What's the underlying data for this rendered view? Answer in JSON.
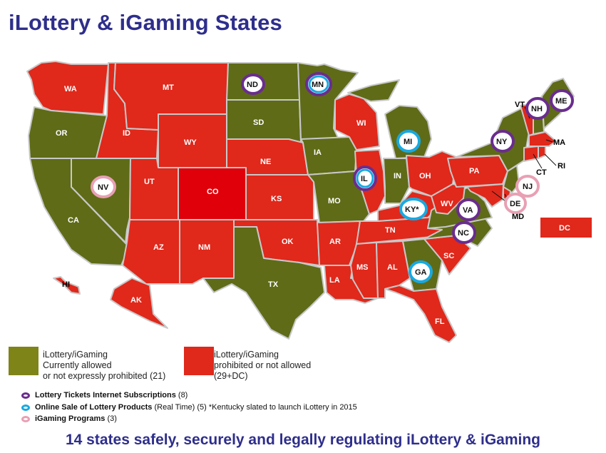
{
  "title": "iLottery & iGaming States",
  "colors": {
    "allowed": "#5f6b17",
    "prohibited": "#e0281b",
    "subscription": "#6a2d8e",
    "realtime": "#19a9e0",
    "igaming": "#e8a0b4"
  },
  "states": {
    "WA": "WA",
    "OR": "OR",
    "CA": "CA",
    "NV": "NV",
    "ID": "ID",
    "MT": "MT",
    "WY": "WY",
    "UT": "UT",
    "AZ": "AZ",
    "CO": "CO",
    "NM": "NM",
    "ND": "ND",
    "SD": "SD",
    "NE": "NE",
    "KS": "KS",
    "OK": "OK",
    "TX": "TX",
    "MN": "MN",
    "IA": "IA",
    "MO": "MO",
    "AR": "AR",
    "LA": "LA",
    "WI": "WI",
    "IL": "IL",
    "MI": "MI",
    "IN": "IN",
    "OH": "OH",
    "KY": "KY*",
    "TN": "TN",
    "MS": "MS",
    "AL": "AL",
    "GA": "GA",
    "FL": "FL",
    "SC": "SC",
    "NC": "NC",
    "VA": "VA",
    "WV": "WV",
    "PA": "PA",
    "NY": "NY",
    "VT": "VT",
    "NH": "NH",
    "ME": "ME",
    "MA": "MA",
    "RI": "RI",
    "CT": "CT",
    "NJ": "NJ",
    "DE": "DE",
    "MD": "MD",
    "DC": "DC",
    "HI": "HI",
    "AK": "AK"
  },
  "legend": {
    "allowed_line1": "iLottery/iGaming",
    "allowed_line2": "Currently allowed",
    "allowed_line3": "or not expressly prohibited (21)",
    "prohibited_line1": "iLottery/iGaming",
    "prohibited_line2": "prohibited or not allowed",
    "prohibited_line3": "(29+DC)",
    "subscription_bold": "Lottery Tickets Internet Subscriptions",
    "subscription_rest": " (8)",
    "realtime_bold": "Online Sale of Lottery Products",
    "realtime_rest": " (Real Time) (5) *Kentucky slated to launch iLottery in 2015",
    "igaming_bold": "iGaming Programs",
    "igaming_rest": " (3)"
  },
  "footer": "14 states safely, securely and legally regulating iLottery & iGaming"
}
